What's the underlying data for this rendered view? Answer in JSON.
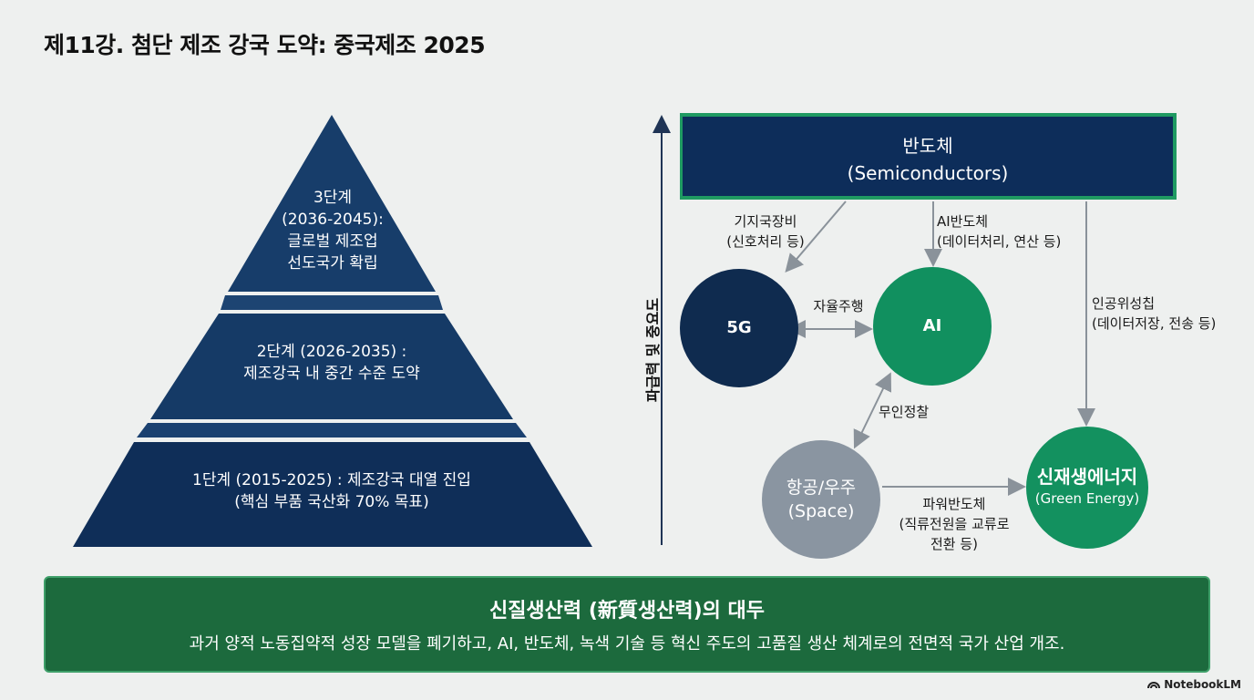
{
  "title": "제11강. 첨단 제조 강국 도약: 중국제조 2025",
  "pyramid": {
    "tier3": [
      "3단계",
      "(2036-2045):",
      "글로벌 제조업",
      "선도국가 확립"
    ],
    "tier2": [
      "2단계 (2026-2035) :",
      "제조강국 내 중간 수준 도약"
    ],
    "tier1": [
      "1단계 (2015-2025) : 제조강국 대열 진입",
      "(핵심 부품 국산화 70% 목표)"
    ]
  },
  "diagram": {
    "axis_label": "파급력 및 중요도",
    "semiconductors": [
      "반도체",
      "(Semiconductors)"
    ],
    "node_5g": "5G",
    "node_ai": "AI",
    "node_space": [
      "항공/우주",
      "(Space)"
    ],
    "node_green": [
      "신재생에너지",
      "(Green Energy)"
    ],
    "edge_base_station": [
      "기지국장비",
      "(신호처리 등)"
    ],
    "edge_ai_chip": [
      "AI반도체",
      "(데이터처리, 연산 등)"
    ],
    "edge_satellite": [
      "인공위성칩",
      "(데이터저장, 전송 등)"
    ],
    "edge_autonomous": "자율주행",
    "edge_drone": "무인정찰",
    "edge_power": [
      "파워반도체",
      "(직류전원을 교류로",
      "전환 등)"
    ]
  },
  "banner": {
    "title": "신질생산력 (新質생산력)의 대두",
    "body": "과거 양적 노동집약적 성장 모델을 폐기하고, AI, 반도체, 녹색 기술 등 혁신 주도의 고품질 생산 체계로의 전면적 국가 산업 개조."
  },
  "brand": "NotebookLM",
  "colors": {
    "navy": "#0d2d5a",
    "green": "#11905f",
    "gray": "#8a95a1",
    "banner_green": "#1c6a3d"
  }
}
